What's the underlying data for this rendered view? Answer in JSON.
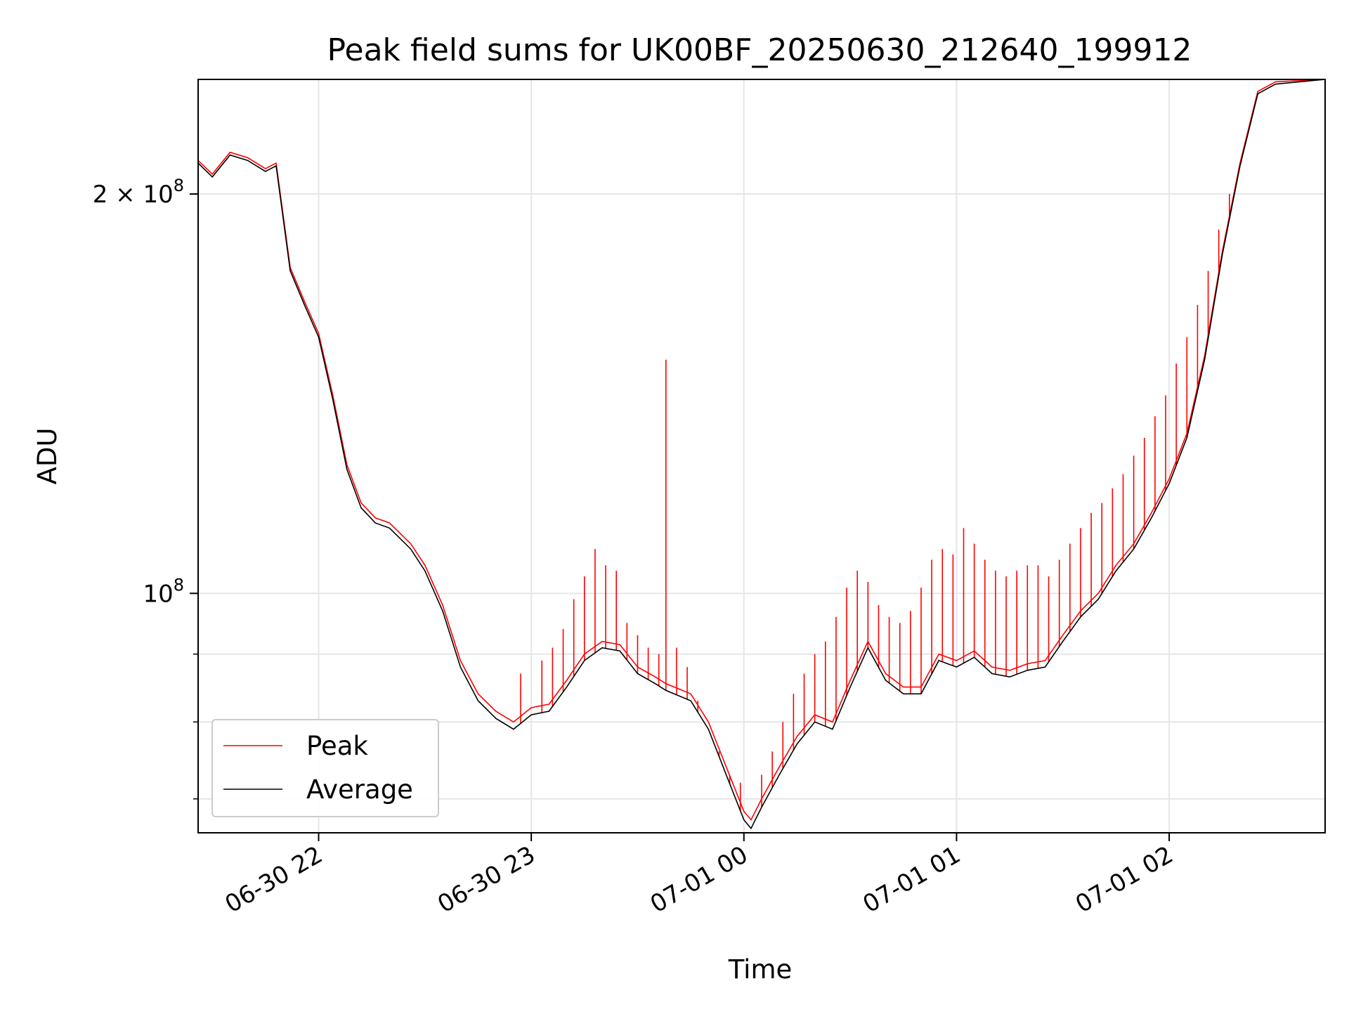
{
  "chart_data": {
    "type": "line",
    "title": "Peak field sums for UK00BF_20250630_212640_199912",
    "xlabel": "Time",
    "ylabel": "ADU",
    "x_axis": {
      "type": "datetime",
      "range": [
        "2025-06-30 21:26",
        "2025-07-01 02:44"
      ],
      "ticks": [
        {
          "value": "2025-06-30 22:00",
          "label": "06-30 22"
        },
        {
          "value": "2025-06-30 23:00",
          "label": "06-30 23"
        },
        {
          "value": "2025-07-01 00:00",
          "label": "07-01 00"
        },
        {
          "value": "2025-07-01 01:00",
          "label": "07-01 01"
        },
        {
          "value": "2025-07-01 02:00",
          "label": "07-01 02"
        }
      ]
    },
    "y_axis": {
      "scale": "log",
      "range": [
        66000000,
        244000000
      ],
      "major_ticks": [
        {
          "value": 100000000,
          "base": "10",
          "exp": "8",
          "mult": ""
        },
        {
          "value": 200000000,
          "base": "10",
          "exp": "8",
          "mult": "2 × "
        }
      ],
      "minor_ticks": [
        70000000,
        80000000,
        90000000
      ]
    },
    "grid": true,
    "legend": {
      "position": "lower-left",
      "entries": [
        "Peak",
        "Average"
      ]
    },
    "series": [
      {
        "name": "Average",
        "color": "#000000",
        "points": [
          [
            "2025-06-30 21:26",
            211000000
          ],
          [
            "2025-06-30 21:30",
            206000000
          ],
          [
            "2025-06-30 21:35",
            214000000
          ],
          [
            "2025-06-30 21:40",
            212000000
          ],
          [
            "2025-06-30 21:45",
            208000000
          ],
          [
            "2025-06-30 21:48",
            210000000
          ],
          [
            "2025-06-30 21:52",
            175000000
          ],
          [
            "2025-06-30 21:56",
            165000000
          ],
          [
            "2025-06-30 22:00",
            156000000
          ],
          [
            "2025-06-30 22:04",
            140000000
          ],
          [
            "2025-06-30 22:08",
            124000000
          ],
          [
            "2025-06-30 22:12",
            116000000
          ],
          [
            "2025-06-30 22:16",
            113000000
          ],
          [
            "2025-06-30 22:20",
            112000000
          ],
          [
            "2025-06-30 22:26",
            108000000
          ],
          [
            "2025-06-30 22:30",
            104000000
          ],
          [
            "2025-06-30 22:35",
            97000000
          ],
          [
            "2025-06-30 22:40",
            88000000
          ],
          [
            "2025-06-30 22:45",
            83000000
          ],
          [
            "2025-06-30 22:50",
            80500000
          ],
          [
            "2025-06-30 22:55",
            79000000
          ],
          [
            "2025-06-30 23:00",
            81000000
          ],
          [
            "2025-06-30 23:05",
            81500000
          ],
          [
            "2025-06-30 23:10",
            85000000
          ],
          [
            "2025-06-30 23:15",
            89000000
          ],
          [
            "2025-06-30 23:20",
            91000000
          ],
          [
            "2025-06-30 23:25",
            90500000
          ],
          [
            "2025-06-30 23:30",
            87000000
          ],
          [
            "2025-06-30 23:35",
            85500000
          ],
          [
            "2025-06-30 23:38",
            84500000
          ],
          [
            "2025-06-30 23:45",
            83000000
          ],
          [
            "2025-06-30 23:50",
            79000000
          ],
          [
            "2025-06-30 23:55",
            73000000
          ],
          [
            "2025-07-01 00:00",
            67500000
          ],
          [
            "2025-07-01 00:02",
            66500000
          ],
          [
            "2025-07-01 00:05",
            69000000
          ],
          [
            "2025-07-01 00:10",
            73000000
          ],
          [
            "2025-07-01 00:15",
            77000000
          ],
          [
            "2025-07-01 00:20",
            80000000
          ],
          [
            "2025-07-01 00:25",
            79000000
          ],
          [
            "2025-07-01 00:30",
            85000000
          ],
          [
            "2025-07-01 00:35",
            91000000
          ],
          [
            "2025-07-01 00:40",
            86000000
          ],
          [
            "2025-07-01 00:45",
            84000000
          ],
          [
            "2025-07-01 00:50",
            84000000
          ],
          [
            "2025-07-01 00:55",
            89000000
          ],
          [
            "2025-07-01 01:00",
            88000000
          ],
          [
            "2025-07-01 01:05",
            89500000
          ],
          [
            "2025-07-01 01:10",
            87000000
          ],
          [
            "2025-07-01 01:15",
            86500000
          ],
          [
            "2025-07-01 01:20",
            87500000
          ],
          [
            "2025-07-01 01:25",
            88000000
          ],
          [
            "2025-07-01 01:30",
            92000000
          ],
          [
            "2025-07-01 01:35",
            96000000
          ],
          [
            "2025-07-01 01:40",
            99000000
          ],
          [
            "2025-07-01 01:45",
            104000000
          ],
          [
            "2025-07-01 01:50",
            108000000
          ],
          [
            "2025-07-01 01:55",
            114000000
          ],
          [
            "2025-07-01 02:00",
            121000000
          ],
          [
            "2025-07-01 02:05",
            131000000
          ],
          [
            "2025-07-01 02:10",
            150000000
          ],
          [
            "2025-07-01 02:15",
            180000000
          ],
          [
            "2025-07-01 02:20",
            210000000
          ],
          [
            "2025-07-01 02:25",
            238000000
          ],
          [
            "2025-07-01 02:30",
            242000000
          ],
          [
            "2025-07-01 02:44",
            244000000
          ]
        ]
      },
      {
        "name": "Peak",
        "color": "#ff0000",
        "points": [
          [
            "2025-06-30 21:26",
            212000000
          ],
          [
            "2025-06-30 21:30",
            207000000
          ],
          [
            "2025-06-30 21:35",
            215000000
          ],
          [
            "2025-06-30 21:40",
            213000000
          ],
          [
            "2025-06-30 21:45",
            209000000
          ],
          [
            "2025-06-30 21:48",
            211000000
          ],
          [
            "2025-06-30 21:52",
            176000000
          ],
          [
            "2025-06-30 21:56",
            166000000
          ],
          [
            "2025-06-30 22:00",
            157000000
          ],
          [
            "2025-06-30 22:04",
            141000000
          ],
          [
            "2025-06-30 22:08",
            125000000
          ],
          [
            "2025-06-30 22:12",
            117000000
          ],
          [
            "2025-06-30 22:16",
            114000000
          ],
          [
            "2025-06-30 22:20",
            113000000
          ],
          [
            "2025-06-30 22:26",
            109000000
          ],
          [
            "2025-06-30 22:30",
            105000000
          ],
          [
            "2025-06-30 22:35",
            98000000
          ],
          [
            "2025-06-30 22:40",
            89000000
          ],
          [
            "2025-06-30 22:45",
            84000000
          ],
          [
            "2025-06-30 22:50",
            81500000
          ],
          [
            "2025-06-30 22:55",
            80000000
          ],
          [
            "2025-06-30 23:00",
            82000000
          ],
          [
            "2025-06-30 23:05",
            82500000
          ],
          [
            "2025-06-30 23:10",
            86000000
          ],
          [
            "2025-06-30 23:15",
            90000000
          ],
          [
            "2025-06-30 23:20",
            92000000
          ],
          [
            "2025-06-30 23:25",
            91500000
          ],
          [
            "2025-06-30 23:30",
            88000000
          ],
          [
            "2025-06-30 23:35",
            86500000
          ],
          [
            "2025-06-30 23:38",
            85500000
          ],
          [
            "2025-06-30 23:45",
            84000000
          ],
          [
            "2025-06-30 23:50",
            80000000
          ],
          [
            "2025-06-30 23:55",
            74000000
          ],
          [
            "2025-07-01 00:00",
            68500000
          ],
          [
            "2025-07-01 00:02",
            67500000
          ],
          [
            "2025-07-01 00:05",
            70000000
          ],
          [
            "2025-07-01 00:10",
            74000000
          ],
          [
            "2025-07-01 00:15",
            78000000
          ],
          [
            "2025-07-01 00:20",
            81000000
          ],
          [
            "2025-07-01 00:25",
            80000000
          ],
          [
            "2025-07-01 00:30",
            86000000
          ],
          [
            "2025-07-01 00:35",
            92000000
          ],
          [
            "2025-07-01 00:40",
            87000000
          ],
          [
            "2025-07-01 00:45",
            85000000
          ],
          [
            "2025-07-01 00:50",
            85000000
          ],
          [
            "2025-07-01 00:55",
            90000000
          ],
          [
            "2025-07-01 01:00",
            89000000
          ],
          [
            "2025-07-01 01:05",
            90500000
          ],
          [
            "2025-07-01 01:10",
            88000000
          ],
          [
            "2025-07-01 01:15",
            87500000
          ],
          [
            "2025-07-01 01:20",
            88500000
          ],
          [
            "2025-07-01 01:25",
            89000000
          ],
          [
            "2025-07-01 01:30",
            93000000
          ],
          [
            "2025-07-01 01:35",
            97000000
          ],
          [
            "2025-07-01 01:40",
            100000000
          ],
          [
            "2025-07-01 01:45",
            105000000
          ],
          [
            "2025-07-01 01:50",
            109000000
          ],
          [
            "2025-07-01 01:55",
            115000000
          ],
          [
            "2025-07-01 02:00",
            122000000
          ],
          [
            "2025-07-01 02:05",
            132000000
          ],
          [
            "2025-07-01 02:10",
            151000000
          ],
          [
            "2025-07-01 02:15",
            181000000
          ],
          [
            "2025-07-01 02:20",
            211000000
          ],
          [
            "2025-07-01 02:25",
            239000000
          ],
          [
            "2025-07-01 02:30",
            243000000
          ],
          [
            "2025-07-01 02:44",
            244000000
          ]
        ],
        "spikes": [
          [
            "2025-06-30 22:57",
            87000000
          ],
          [
            "2025-06-30 23:03",
            89000000
          ],
          [
            "2025-06-30 23:06",
            91000000
          ],
          [
            "2025-06-30 23:09",
            94000000
          ],
          [
            "2025-06-30 23:12",
            99000000
          ],
          [
            "2025-06-30 23:15",
            103000000
          ],
          [
            "2025-06-30 23:18",
            108000000
          ],
          [
            "2025-06-30 23:21",
            105000000
          ],
          [
            "2025-06-30 23:24",
            104000000
          ],
          [
            "2025-06-30 23:27",
            95000000
          ],
          [
            "2025-06-30 23:30",
            93000000
          ],
          [
            "2025-06-30 23:33",
            91000000
          ],
          [
            "2025-06-30 23:36",
            90000000
          ],
          [
            "2025-06-30 23:38",
            150000000
          ],
          [
            "2025-06-30 23:41",
            91000000
          ],
          [
            "2025-06-30 23:44",
            88000000
          ],
          [
            "2025-06-30 23:47",
            83000000
          ],
          [
            "2025-06-30 23:50",
            79000000
          ],
          [
            "2025-06-30 23:53",
            76000000
          ],
          [
            "2025-06-30 23:56",
            73000000
          ],
          [
            "2025-06-30 23:59",
            72000000
          ],
          [
            "2025-07-01 00:05",
            73000000
          ],
          [
            "2025-07-01 00:08",
            76000000
          ],
          [
            "2025-07-01 00:11",
            80000000
          ],
          [
            "2025-07-01 00:14",
            84000000
          ],
          [
            "2025-07-01 00:17",
            87000000
          ],
          [
            "2025-07-01 00:20",
            90000000
          ],
          [
            "2025-07-01 00:23",
            92000000
          ],
          [
            "2025-07-01 00:26",
            96000000
          ],
          [
            "2025-07-01 00:29",
            101000000
          ],
          [
            "2025-07-01 00:32",
            104000000
          ],
          [
            "2025-07-01 00:35",
            102000000
          ],
          [
            "2025-07-01 00:38",
            98000000
          ],
          [
            "2025-07-01 00:41",
            96000000
          ],
          [
            "2025-07-01 00:44",
            95000000
          ],
          [
            "2025-07-01 00:47",
            97000000
          ],
          [
            "2025-07-01 00:50",
            101000000
          ],
          [
            "2025-07-01 00:53",
            106000000
          ],
          [
            "2025-07-01 00:56",
            108000000
          ],
          [
            "2025-07-01 00:59",
            107000000
          ],
          [
            "2025-07-01 01:02",
            112000000
          ],
          [
            "2025-07-01 01:05",
            109000000
          ],
          [
            "2025-07-01 01:08",
            106000000
          ],
          [
            "2025-07-01 01:11",
            104000000
          ],
          [
            "2025-07-01 01:14",
            103000000
          ],
          [
            "2025-07-01 01:17",
            104000000
          ],
          [
            "2025-07-01 01:20",
            105000000
          ],
          [
            "2025-07-01 01:23",
            105000000
          ],
          [
            "2025-07-01 01:26",
            103000000
          ],
          [
            "2025-07-01 01:29",
            106000000
          ],
          [
            "2025-07-01 01:32",
            109000000
          ],
          [
            "2025-07-01 01:35",
            112000000
          ],
          [
            "2025-07-01 01:38",
            115000000
          ],
          [
            "2025-07-01 01:41",
            117000000
          ],
          [
            "2025-07-01 01:44",
            120000000
          ],
          [
            "2025-07-01 01:47",
            123000000
          ],
          [
            "2025-07-01 01:50",
            127000000
          ],
          [
            "2025-07-01 01:53",
            131000000
          ],
          [
            "2025-07-01 01:56",
            136000000
          ],
          [
            "2025-07-01 01:59",
            141000000
          ],
          [
            "2025-07-01 02:02",
            149000000
          ],
          [
            "2025-07-01 02:05",
            156000000
          ],
          [
            "2025-07-01 02:08",
            165000000
          ],
          [
            "2025-07-01 02:11",
            175000000
          ],
          [
            "2025-07-01 02:14",
            188000000
          ],
          [
            "2025-07-01 02:17",
            200000000
          ]
        ]
      }
    ]
  }
}
